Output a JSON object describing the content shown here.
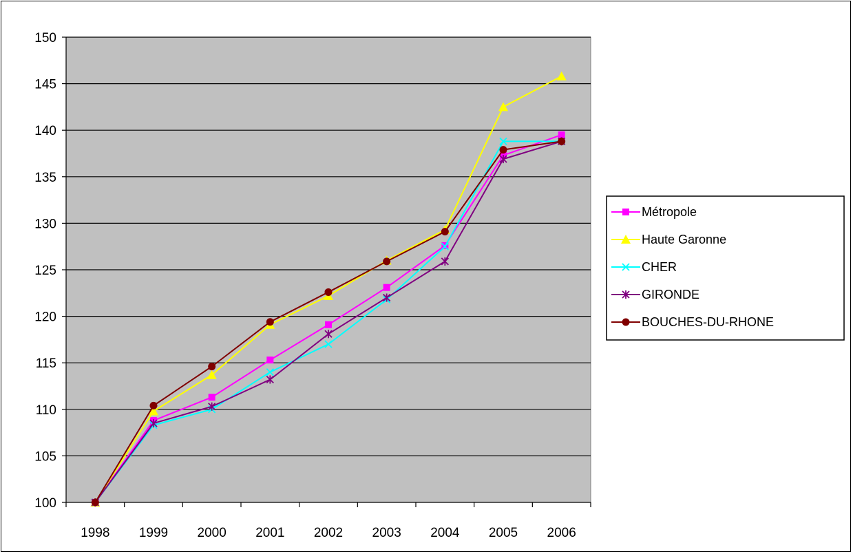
{
  "chart_data": {
    "type": "line",
    "title": "",
    "xlabel": "",
    "ylabel": "",
    "x": [
      "1998",
      "1999",
      "2000",
      "2001",
      "2002",
      "2003",
      "2004",
      "2005",
      "2006"
    ],
    "ylim": [
      100,
      150
    ],
    "yticks": [
      100,
      105,
      110,
      115,
      120,
      125,
      130,
      135,
      140,
      145,
      150
    ],
    "grid": true,
    "plot_background": "#c0c0c0",
    "legend_position": "right",
    "series": [
      {
        "name": "Métropole",
        "color": "#ff00ff",
        "marker": "square",
        "values": [
          100,
          108.8,
          111.3,
          115.3,
          119.1,
          123.1,
          127.6,
          137.3,
          139.5
        ]
      },
      {
        "name": "Haute Garonne",
        "color": "#ffff00",
        "marker": "triangle",
        "values": [
          100,
          109.8,
          113.7,
          119.1,
          122.2,
          126.0,
          129.3,
          142.5,
          145.8
        ]
      },
      {
        "name": "CHER",
        "color": "#00ffff",
        "marker": "x",
        "values": [
          100,
          108.3,
          110.0,
          114.0,
          117.0,
          121.8,
          127.5,
          138.8,
          138.8
        ]
      },
      {
        "name": "GIRONDE",
        "color": "#800080",
        "marker": "asterisk",
        "values": [
          100,
          108.5,
          110.3,
          113.2,
          118.1,
          122.0,
          125.9,
          136.9,
          138.8
        ]
      },
      {
        "name": "BOUCHES-DU-RHONE",
        "color": "#800000",
        "marker": "circle",
        "values": [
          100,
          110.4,
          114.6,
          119.4,
          122.6,
          125.9,
          129.1,
          137.9,
          138.8
        ]
      }
    ]
  }
}
